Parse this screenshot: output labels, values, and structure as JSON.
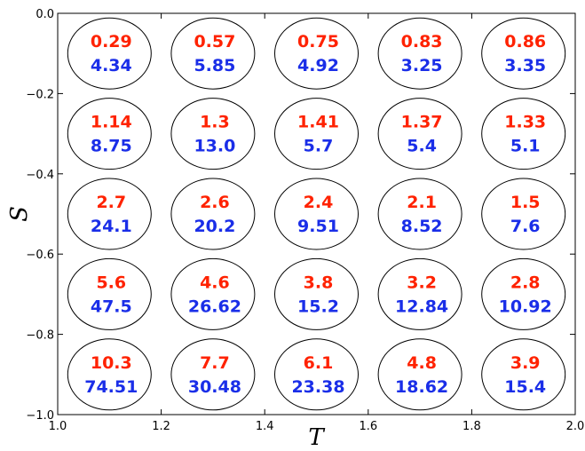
{
  "chart_data": {
    "type": "scatter",
    "xlabel": "T",
    "ylabel": "S",
    "xlim": [
      1.0,
      2.0
    ],
    "ylim": [
      -1.0,
      0.0
    ],
    "x_ticks": [
      "1.0",
      "1.2",
      "1.4",
      "1.6",
      "1.8",
      "2.0"
    ],
    "y_ticks": [
      "0.0",
      "−0.2",
      "−0.4",
      "−0.6",
      "−0.8",
      "−1.0"
    ],
    "grid": false,
    "x_centers": [
      1.1,
      1.3,
      1.5,
      1.7,
      1.9
    ],
    "y_centers": [
      -0.1,
      -0.3,
      -0.5,
      -0.7,
      -0.9
    ],
    "series": [
      {
        "color": "#ff2200",
        "values": [
          [
            "0.29",
            "0.57",
            "0.75",
            "0.83",
            "0.86"
          ],
          [
            "1.14",
            "1.3",
            "1.41",
            "1.37",
            "1.33"
          ],
          [
            "2.7",
            "2.6",
            "2.4",
            "2.1",
            "1.5"
          ],
          [
            "5.6",
            "4.6",
            "3.8",
            "3.2",
            "2.8"
          ],
          [
            "10.3",
            "7.7",
            "6.1",
            "4.8",
            "3.9"
          ]
        ]
      },
      {
        "color": "#1a2ee8",
        "values": [
          [
            "4.34",
            "5.85",
            "4.92",
            "3.25",
            "3.35"
          ],
          [
            "8.75",
            "13.0",
            "5.7",
            "5.4",
            "5.1"
          ],
          [
            "24.1",
            "20.2",
            "9.51",
            "8.52",
            "7.6"
          ],
          [
            "47.5",
            "26.62",
            "15.2",
            "12.84",
            "10.92"
          ],
          [
            "74.51",
            "30.48",
            "23.38",
            "18.62",
            "15.4"
          ]
        ]
      }
    ]
  }
}
